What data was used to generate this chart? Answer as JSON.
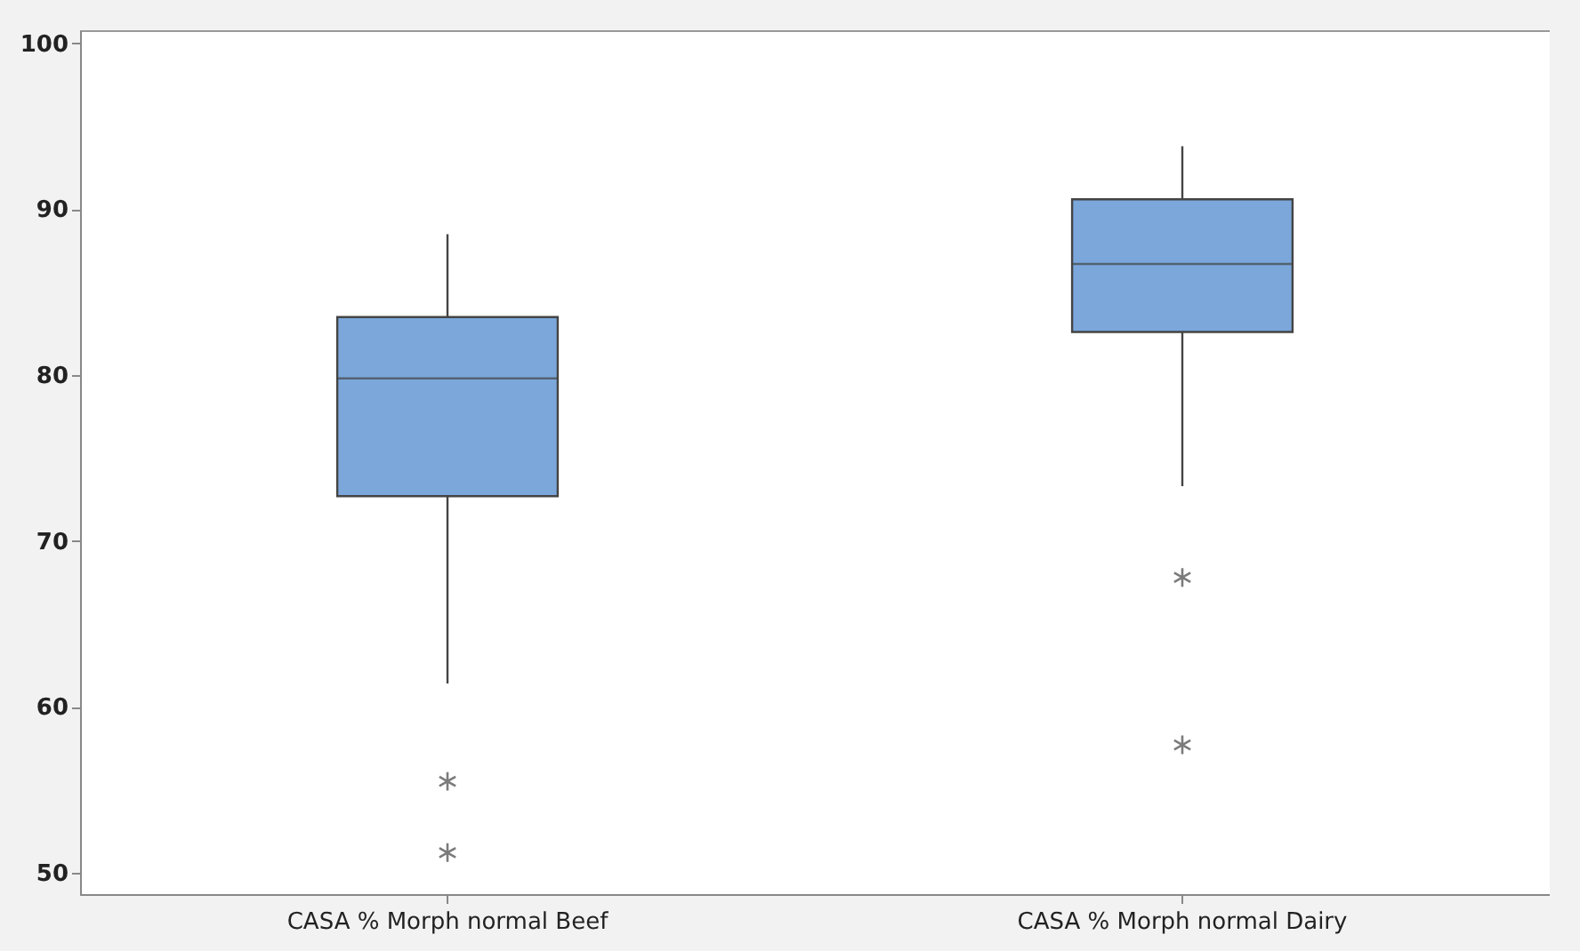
{
  "chart_data": {
    "type": "box",
    "categories": [
      "CASA % Morph normal Beef",
      "CASA % Morph normal Dairy"
    ],
    "boxes": [
      {
        "low": 61.4,
        "q1": 72.7,
        "median": 79.8,
        "q3": 83.5,
        "high": 88.5,
        "outliers": [
          55.5,
          51.2
        ]
      },
      {
        "low": 73.3,
        "q1": 82.6,
        "median": 86.7,
        "q3": 90.6,
        "high": 93.8,
        "outliers": [
          67.8,
          57.7
        ]
      }
    ],
    "color": "#7ba7db",
    "ylim": [
      48.7,
      100.8
    ],
    "yticks": [
      50,
      60,
      70,
      80,
      90,
      100
    ]
  }
}
